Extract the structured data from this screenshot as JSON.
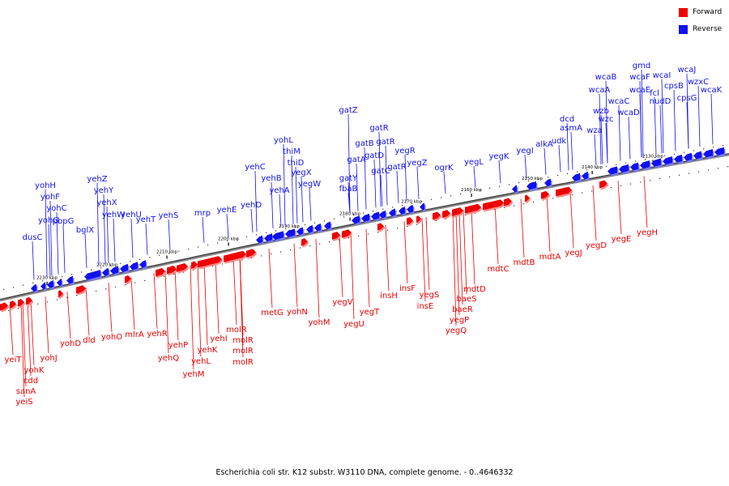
{
  "legend": {
    "forward": {
      "label": "Forward",
      "color": "#ee0000"
    },
    "reverse": {
      "label": "Reverse",
      "color": "#1111ee"
    }
  },
  "caption": "Escherichia coli str. K12 substr. W3110 DNA, complete genome. - 0..4646332",
  "ticks": [
    "2230 kbp",
    "2220 kbp",
    "2210 kbp",
    "2200 kbp",
    "2190 kbp",
    "2180 kbp",
    "2170 kbp",
    "2160 kbp",
    "2150 kbp",
    "2140 kbp",
    "2130 kbp"
  ],
  "reverse_genes": [
    "dusC",
    "yohH",
    "yohF",
    "yohG",
    "yohC",
    "pbpG",
    "bglX",
    "yehZ",
    "yehY",
    "yehX",
    "yehW",
    "yehU",
    "yehT",
    "yehS",
    "mrp",
    "yehE",
    "yehD",
    "yehC",
    "yehB",
    "yehA",
    "yohL",
    "thiM",
    "thiD",
    "yegX",
    "yegW",
    "gatY",
    "fbaB",
    "gatA",
    "gatZ",
    "gatB",
    "gatD",
    "gatC",
    "gatR",
    "gatR",
    "gatR",
    "yegR",
    "yegZ",
    "ogrK",
    "yegL",
    "yegK",
    "yegI",
    "alkA",
    "udk",
    "dcd",
    "asmA",
    "wza",
    "wzb",
    "wzc",
    "wcaA",
    "wcaB",
    "wcaC",
    "wcaD",
    "wcaE",
    "wcaF",
    "fcl",
    "nudD",
    "gmd",
    "wcaI",
    "cpsB",
    "cpsG",
    "wzxC",
    "wcaJ",
    "wcaK"
  ],
  "forward_genes": [
    "yeiT",
    "yohK",
    "cdd",
    "sanA",
    "yeiS",
    "yohJ",
    "yohD",
    "dld",
    "yohO",
    "mlrA",
    "yehR",
    "yehQ",
    "yehP",
    "yehM",
    "yehL",
    "yehK",
    "yehI",
    "molR",
    "molR",
    "molR",
    "molR",
    "metG",
    "yohN",
    "yohM",
    "yegV",
    "yegU",
    "yegT",
    "insH",
    "insF",
    "yegS",
    "insE",
    "yegQ",
    "yegP",
    "baeR",
    "baeS",
    "mdtD",
    "mdtC",
    "mdtB",
    "mdtA",
    "yegJ",
    "yegD",
    "yegE",
    "yegH"
  ]
}
